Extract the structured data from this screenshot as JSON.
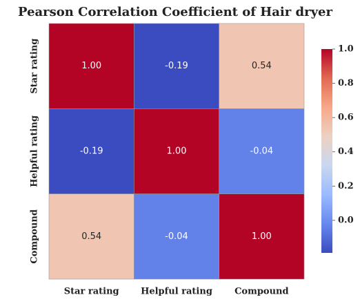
{
  "chart_data": {
    "type": "heatmap",
    "title": "Pearson Correlation Coefficient of Hair dryer",
    "x_categories": [
      "Star rating",
      "Helpful rating",
      "Compound"
    ],
    "y_categories": [
      "Star rating",
      "Helpful rating",
      "Compound"
    ],
    "values": [
      [
        1.0,
        -0.19,
        0.54
      ],
      [
        -0.19,
        1.0,
        -0.04
      ],
      [
        0.54,
        -0.04,
        1.0
      ]
    ],
    "value_labels": [
      [
        "1.00",
        "-0.19",
        "0.54"
      ],
      [
        "-0.19",
        "1.00",
        "-0.04"
      ],
      [
        "0.54",
        "-0.04",
        "1.00"
      ]
    ],
    "colorscale": [
      "#3b4cc0",
      "#6788ee",
      "#9abbff",
      "#c9d7f0",
      "#edd1c2",
      "#f7a889",
      "#e26952",
      "#b40426"
    ],
    "colorbar": {
      "lim": [
        -0.19,
        1.0
      ],
      "ticks": [
        {
          "value": 0,
          "label": "0.0"
        },
        {
          "value": 0.2,
          "label": "0.2"
        },
        {
          "value": 0.4,
          "label": "0.4"
        },
        {
          "value": 0.6,
          "label": "0.6"
        },
        {
          "value": 0.8,
          "label": "0.8"
        },
        {
          "value": 1.0,
          "label": "1.0"
        }
      ]
    }
  }
}
